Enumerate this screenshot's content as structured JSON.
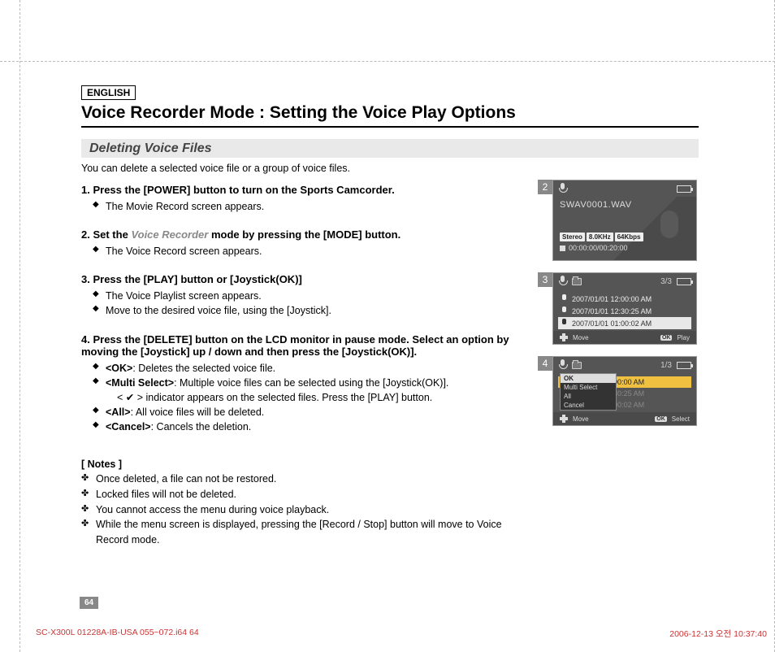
{
  "lang_label": "ENGLISH",
  "section_title": "Voice Recorder Mode : Setting the Voice Play Options",
  "subsection_title": "Deleting Voice Files",
  "intro": "You can delete a selected voice file or a group of voice files.",
  "steps": [
    {
      "num": "1.",
      "head": "Press the [POWER] button to turn on the Sports Camcorder.",
      "subs": [
        "The Movie Record screen appears."
      ]
    },
    {
      "num": "2.",
      "head_pre": "Set the ",
      "head_grey": "Voice Recorder",
      "head_post": " mode by pressing the [MODE] button.",
      "subs": [
        "The Voice Record screen appears."
      ]
    },
    {
      "num": "3.",
      "head": "Press the [PLAY] button or [Joystick(OK)]",
      "subs": [
        "The Voice Playlist screen appears.",
        "Move to the desired voice file, using the [Joystick]."
      ]
    },
    {
      "num": "4.",
      "head": "Press the [DELETE] button on the LCD monitor in pause mode. Select an option by moving the [Joystick] up / down and then press the [Joystick(OK)].",
      "opts": [
        {
          "b": "<OK>",
          "t": ": Deletes the selected voice file."
        },
        {
          "b": "<Multi Select>",
          "t": ": Multiple voice files can be selected using the [Joystick(OK)]."
        },
        {
          "indent": true,
          "t": "< ✔ > indicator appears on the selected files. Press the [PLAY] button."
        },
        {
          "b": "<All>",
          "t": ": All voice files will be deleted."
        },
        {
          "b": "<Cancel>",
          "t": ": Cancels the deletion."
        }
      ]
    }
  ],
  "notes_head": "[ Notes ]",
  "notes": [
    "Once deleted, a file can not be restored.",
    "Locked files will not be deleted.",
    "You cannot access the menu during voice playback.",
    "While the menu screen is displayed, pressing the [Record / Stop] button will move to Voice Record mode."
  ],
  "page_number": "64",
  "footer_left": "SC-X300L 01228A-IB-USA 055~072.i64   64",
  "footer_right": "2006-12-13   오전 10:37:40",
  "screens": {
    "s2": {
      "num": "2",
      "filename": "SWAV0001.WAV",
      "badges": [
        "Stereo",
        "8.0KHz",
        "64Kbps"
      ],
      "time": "00:00:00/00:20:00"
    },
    "s3": {
      "num": "3",
      "counter": "3/3",
      "rows": [
        "2007/01/01 12:00:00 AM",
        "2007/01/01 12:30:25 AM",
        "2007/01/01 01:00:02 AM"
      ],
      "foot_move": "Move",
      "foot_play": "Play"
    },
    "s4": {
      "num": "4",
      "counter": "1/3",
      "rows": [
        "2007/01/01 12:00:00 AM",
        "2007/01/01 12:30:25 AM",
        "2007/01/01 01:00:02 AM"
      ],
      "menu": [
        "OK",
        "Multi Select",
        "All",
        "Cancel"
      ],
      "foot_move": "Move",
      "foot_select": "Select"
    }
  }
}
